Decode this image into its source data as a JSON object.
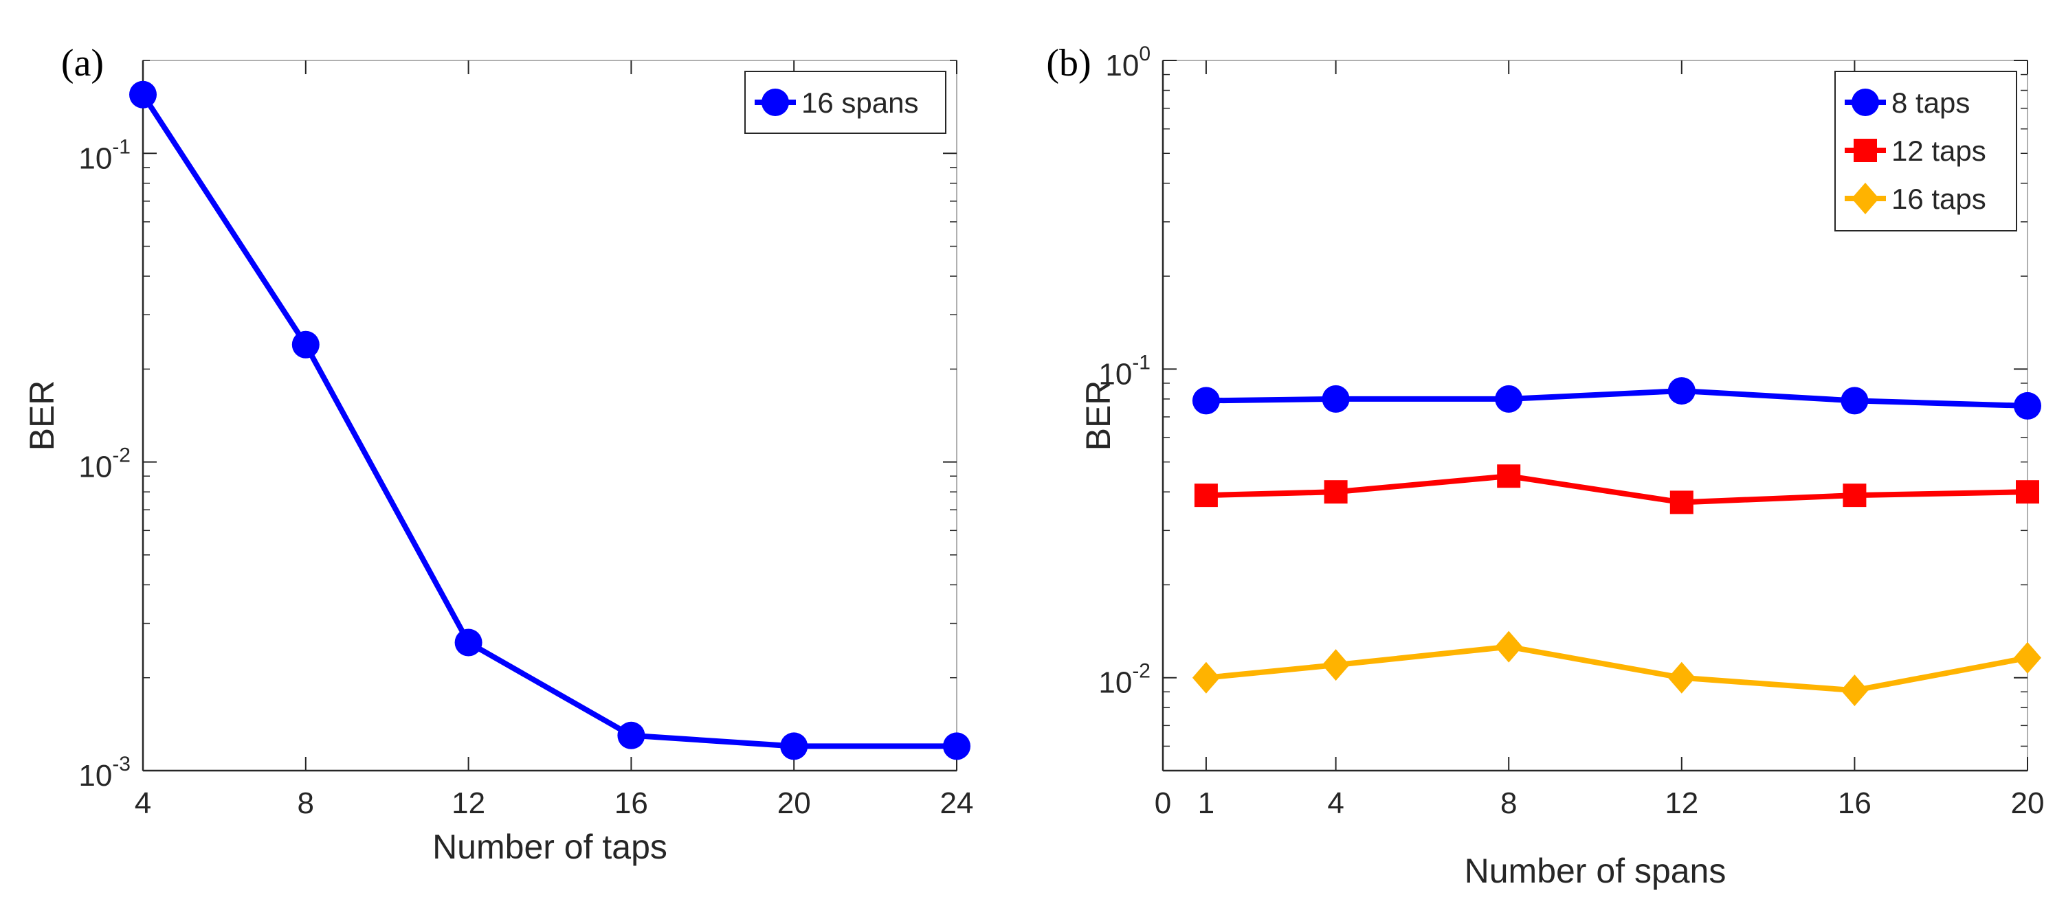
{
  "colors": {
    "blue": "#0000ff",
    "red": "#ff0000",
    "orange": "#ffb300",
    "axis": "#262626",
    "frame": "#b0b0b0"
  },
  "chart_data": [
    {
      "type": "line",
      "panel_label": "(a)",
      "title": "",
      "xlabel": "Number of taps",
      "ylabel": "BER",
      "yscale": "log",
      "xlim": [
        4,
        24
      ],
      "ylim": [
        0.001,
        0.2
      ],
      "x": [
        4,
        8,
        12,
        16,
        20,
        24
      ],
      "xticks": [
        4,
        8,
        12,
        16,
        20,
        24
      ],
      "xtick_labels": [
        "4",
        "8",
        "12",
        "16",
        "20",
        "24"
      ],
      "yticks": [
        {
          "value": 0.1,
          "base": "10",
          "exp": "-1"
        },
        {
          "value": 0.01,
          "base": "10",
          "exp": "-2"
        },
        {
          "value": 0.001,
          "base": "10",
          "exp": "-3"
        }
      ],
      "legend_position": "top-right",
      "series": [
        {
          "name": "16 spans",
          "marker": "circle",
          "color": "#0000ff",
          "values": [
            0.155,
            0.024,
            0.0026,
            0.0013,
            0.0012,
            0.0012
          ]
        }
      ]
    },
    {
      "type": "line",
      "panel_label": "(b)",
      "title": "",
      "xlabel": "Number of spans",
      "ylabel": "BER",
      "yscale": "log",
      "xlim": [
        0,
        20
      ],
      "ylim": [
        0.005,
        1
      ],
      "x": [
        1,
        4,
        8,
        12,
        16,
        20
      ],
      "xticks": [
        0,
        1,
        4,
        8,
        12,
        16,
        20
      ],
      "xtick_labels": [
        "0",
        "1",
        "4",
        "8",
        "12",
        "16",
        "20"
      ],
      "yticks": [
        {
          "value": 1,
          "base": "10",
          "exp": "0"
        },
        {
          "value": 0.1,
          "base": "10",
          "exp": "-1"
        },
        {
          "value": 0.01,
          "base": "10",
          "exp": "-2"
        }
      ],
      "legend_position": "top-right",
      "series": [
        {
          "name": "8 taps",
          "marker": "circle",
          "color": "#0000ff",
          "values": [
            0.079,
            0.08,
            0.08,
            0.085,
            0.079,
            0.076
          ]
        },
        {
          "name": "12 taps",
          "marker": "square",
          "color": "#ff0000",
          "values": [
            0.039,
            0.04,
            0.045,
            0.037,
            0.039,
            0.04
          ]
        },
        {
          "name": "16 taps",
          "marker": "diamond",
          "color": "#ffb300",
          "values": [
            0.01,
            0.011,
            0.0126,
            0.01,
            0.0091,
            0.0116
          ]
        }
      ]
    }
  ]
}
